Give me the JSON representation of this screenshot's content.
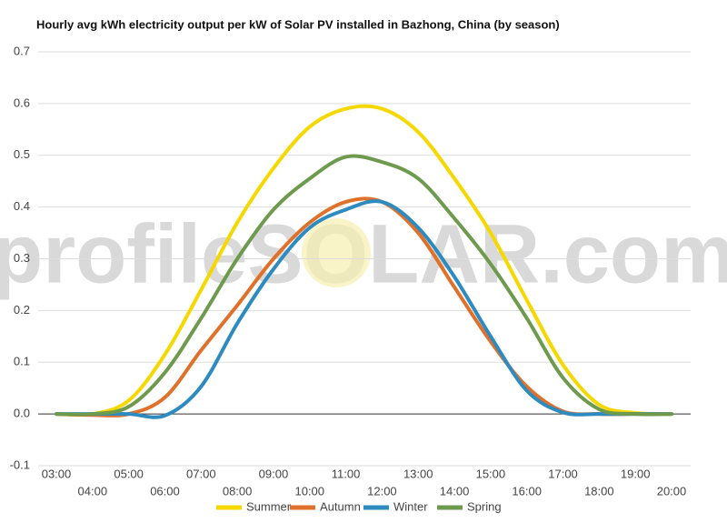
{
  "chart_data": {
    "type": "line",
    "title": "Hourly avg kWh electricity output per kW of Solar PV installed in Bazhong, China (by season)",
    "watermark": "profileSOLAR.com",
    "categories": [
      "03:00",
      "04:00",
      "05:00",
      "06:00",
      "07:00",
      "08:00",
      "09:00",
      "10:00",
      "11:00",
      "12:00",
      "13:00",
      "14:00",
      "15:00",
      "16:00",
      "17:00",
      "18:00",
      "19:00",
      "20:00"
    ],
    "series": [
      {
        "name": "Summer",
        "color": "#f5d800",
        "values": [
          0,
          0,
          0.026,
          0.115,
          0.24,
          0.37,
          0.475,
          0.555,
          0.59,
          0.59,
          0.545,
          0.455,
          0.35,
          0.22,
          0.095,
          0.018,
          0.002,
          0
        ]
      },
      {
        "name": "Autumn",
        "color": "#e0712a",
        "values": [
          0,
          -0.002,
          0,
          0.032,
          0.123,
          0.21,
          0.3,
          0.37,
          0.41,
          0.41,
          0.35,
          0.245,
          0.14,
          0.053,
          0.005,
          0,
          0,
          0
        ]
      },
      {
        "name": "Winter",
        "color": "#2e8bc0",
        "values": [
          0,
          0,
          0,
          -0.003,
          0.053,
          0.175,
          0.28,
          0.36,
          0.395,
          0.41,
          0.36,
          0.265,
          0.15,
          0.045,
          0.003,
          0,
          0,
          0
        ]
      },
      {
        "name": "Spring",
        "color": "#6e9a4e",
        "values": [
          0,
          0,
          0.014,
          0.08,
          0.185,
          0.3,
          0.395,
          0.455,
          0.497,
          0.487,
          0.455,
          0.378,
          0.29,
          0.185,
          0.07,
          0.009,
          0,
          0
        ]
      }
    ],
    "ylim": [
      -0.1,
      0.7
    ],
    "yticks": [
      -0.1,
      {
        "value": 0,
        "label": "0.0"
      },
      0.1,
      0.2,
      0.3,
      0.4,
      0.5,
      0.6,
      0.7
    ],
    "grid": true
  }
}
